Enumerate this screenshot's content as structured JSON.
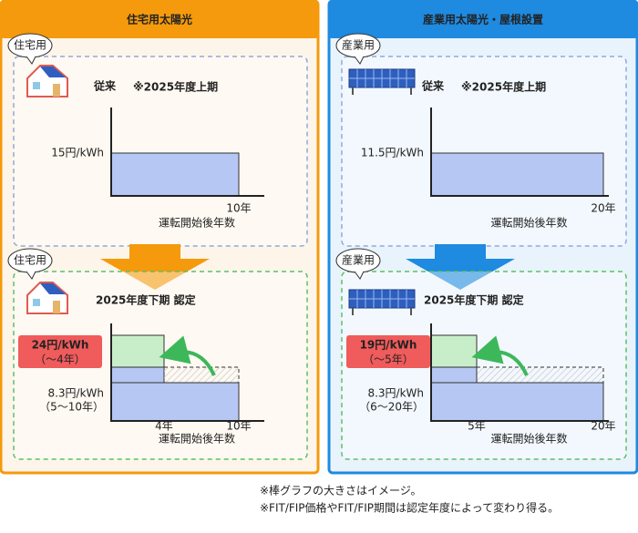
{
  "panels": [
    {
      "title": "住宅用太陽光",
      "badge": "住宅用",
      "before": {
        "heading": "従来",
        "heading_note": "※2025年度上期",
        "y_label": "15円/kWh",
        "x_label": "10年",
        "axis_title": "運転開始後年数"
      },
      "after": {
        "badge": "住宅用",
        "heading": "2025年度下期 認定",
        "high_label": "24円/kWh",
        "high_sub": "（〜4年）",
        "low_label": "8.3円/kWh",
        "low_sub": "（5〜10年）",
        "x1_label": "4年",
        "x2_label": "10年",
        "axis_title": "運転開始後年数"
      }
    },
    {
      "title": "産業用太陽光・屋根設置",
      "badge": "産業用",
      "before": {
        "heading": "従来",
        "heading_note": "※2025年度上期",
        "y_label": "11.5円/kWh",
        "x_label": "20年",
        "axis_title": "運転開始後年数"
      },
      "after": {
        "badge": "産業用",
        "heading": "2025年度下期 認定",
        "high_label": "19円/kWh",
        "high_sub": "（〜5年）",
        "low_label": "8.3円/kWh",
        "low_sub": "（6〜20年）",
        "x1_label": "5年",
        "x2_label": "20年",
        "axis_title": "運転開始後年数"
      }
    }
  ],
  "notes": [
    "※棒グラフの大きさはイメージ。",
    "※FIT/FIP価格やFIT/FIP期間は認定年度によって変わり得る。"
  ]
}
